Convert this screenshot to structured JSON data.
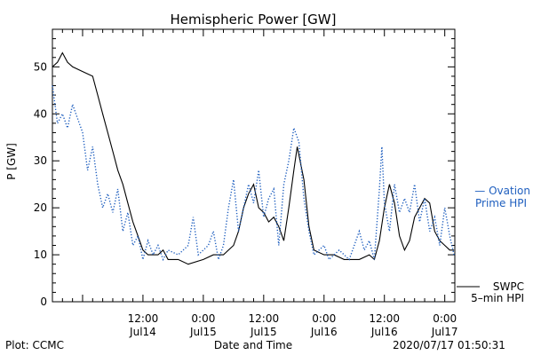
{
  "chart_data": {
    "type": "line",
    "title": "Hemispheric Power [GW]",
    "ylabel": "P [GW]",
    "xlabel": "Date and Time",
    "ylim": [
      0,
      58
    ],
    "xlim": [
      "2020-07-13 18:00",
      "2020-07-17 02:00"
    ],
    "yticks": [
      0,
      10,
      20,
      30,
      40,
      50
    ],
    "xticks": [
      {
        "t": "2020-07-14 12:00",
        "top": "12:00",
        "bottom": "Jul14"
      },
      {
        "t": "2020-07-15 00:00",
        "top": "0:00",
        "bottom": "Jul15"
      },
      {
        "t": "2020-07-15 12:00",
        "top": "12:00",
        "bottom": "Jul15"
      },
      {
        "t": "2020-07-16 00:00",
        "top": "0:00",
        "bottom": "Jul16"
      },
      {
        "t": "2020-07-16 12:00",
        "top": "12:00",
        "bottom": "Jul16"
      },
      {
        "t": "2020-07-17 00:00",
        "top": "0:00",
        "bottom": "Jul17"
      }
    ],
    "series": [
      {
        "name": "SWPC 5-min HPI",
        "color": "#000000",
        "style": "solid",
        "points": [
          [
            "2020-07-13 18:00",
            50
          ],
          [
            "2020-07-13 19:00",
            51
          ],
          [
            "2020-07-13 20:00",
            53
          ],
          [
            "2020-07-13 21:00",
            51
          ],
          [
            "2020-07-13 22:00",
            50
          ],
          [
            "2020-07-14 00:00",
            49
          ],
          [
            "2020-07-14 02:00",
            48
          ],
          [
            "2020-07-14 03:00",
            44
          ],
          [
            "2020-07-14 04:00",
            40
          ],
          [
            "2020-07-14 05:00",
            36
          ],
          [
            "2020-07-14 06:00",
            32
          ],
          [
            "2020-07-14 07:00",
            28
          ],
          [
            "2020-07-14 08:00",
            25
          ],
          [
            "2020-07-14 09:00",
            21
          ],
          [
            "2020-07-14 10:00",
            17
          ],
          [
            "2020-07-14 11:00",
            14
          ],
          [
            "2020-07-14 12:00",
            11
          ],
          [
            "2020-07-14 13:00",
            10
          ],
          [
            "2020-07-14 15:00",
            10
          ],
          [
            "2020-07-14 16:00",
            11
          ],
          [
            "2020-07-14 17:00",
            9
          ],
          [
            "2020-07-14 19:00",
            9
          ],
          [
            "2020-07-14 21:00",
            8
          ],
          [
            "2020-07-15 00:00",
            9
          ],
          [
            "2020-07-15 02:00",
            10
          ],
          [
            "2020-07-15 04:00",
            10
          ],
          [
            "2020-07-15 06:00",
            12
          ],
          [
            "2020-07-15 07:00",
            15
          ],
          [
            "2020-07-15 08:00",
            20
          ],
          [
            "2020-07-15 09:00",
            23
          ],
          [
            "2020-07-15 10:00",
            25
          ],
          [
            "2020-07-15 11:00",
            20
          ],
          [
            "2020-07-15 12:00",
            19
          ],
          [
            "2020-07-15 13:00",
            17
          ],
          [
            "2020-07-15 14:00",
            18
          ],
          [
            "2020-07-15 15:00",
            16
          ],
          [
            "2020-07-15 16:00",
            13
          ],
          [
            "2020-07-15 17:00",
            20
          ],
          [
            "2020-07-15 18:00",
            28
          ],
          [
            "2020-07-15 18:40",
            33
          ],
          [
            "2020-07-15 20:00",
            26
          ],
          [
            "2020-07-15 21:00",
            16
          ],
          [
            "2020-07-15 22:00",
            11
          ],
          [
            "2020-07-16 00:00",
            10
          ],
          [
            "2020-07-16 02:00",
            10
          ],
          [
            "2020-07-16 04:00",
            9
          ],
          [
            "2020-07-16 07:00",
            9
          ],
          [
            "2020-07-16 09:00",
            10
          ],
          [
            "2020-07-16 10:00",
            9
          ],
          [
            "2020-07-16 11:00",
            13
          ],
          [
            "2020-07-16 12:00",
            20
          ],
          [
            "2020-07-16 13:00",
            25
          ],
          [
            "2020-07-16 14:00",
            21
          ],
          [
            "2020-07-16 15:00",
            14
          ],
          [
            "2020-07-16 16:00",
            11
          ],
          [
            "2020-07-16 17:00",
            13
          ],
          [
            "2020-07-16 18:00",
            18
          ],
          [
            "2020-07-16 19:00",
            20
          ],
          [
            "2020-07-16 20:00",
            22
          ],
          [
            "2020-07-16 21:00",
            21
          ],
          [
            "2020-07-16 22:00",
            15
          ],
          [
            "2020-07-16 23:00",
            13
          ],
          [
            "2020-07-17 00:00",
            12
          ],
          [
            "2020-07-17 01:00",
            11
          ],
          [
            "2020-07-17 01:50",
            11
          ]
        ]
      },
      {
        "name": "Ovation Prime HPI",
        "color": "#1f5fbf",
        "style": "dotted",
        "points": [
          [
            "2020-07-13 18:00",
            46
          ],
          [
            "2020-07-13 19:00",
            38
          ],
          [
            "2020-07-13 20:00",
            40
          ],
          [
            "2020-07-13 21:00",
            37
          ],
          [
            "2020-07-13 22:00",
            42
          ],
          [
            "2020-07-14 00:00",
            36
          ],
          [
            "2020-07-14 01:00",
            28
          ],
          [
            "2020-07-14 02:00",
            33
          ],
          [
            "2020-07-14 03:00",
            25
          ],
          [
            "2020-07-14 04:00",
            20
          ],
          [
            "2020-07-14 05:00",
            23
          ],
          [
            "2020-07-14 06:00",
            19
          ],
          [
            "2020-07-14 07:00",
            24
          ],
          [
            "2020-07-14 08:00",
            15
          ],
          [
            "2020-07-14 09:00",
            19
          ],
          [
            "2020-07-14 10:00",
            12
          ],
          [
            "2020-07-14 11:00",
            14
          ],
          [
            "2020-07-14 12:00",
            9
          ],
          [
            "2020-07-14 13:00",
            13
          ],
          [
            "2020-07-14 14:00",
            10
          ],
          [
            "2020-07-14 15:00",
            12
          ],
          [
            "2020-07-14 16:00",
            9
          ],
          [
            "2020-07-14 17:00",
            11
          ],
          [
            "2020-07-14 19:00",
            10
          ],
          [
            "2020-07-14 21:00",
            12
          ],
          [
            "2020-07-14 22:00",
            18
          ],
          [
            "2020-07-14 23:00",
            10
          ],
          [
            "2020-07-15 01:00",
            12
          ],
          [
            "2020-07-15 02:00",
            15
          ],
          [
            "2020-07-15 03:00",
            9
          ],
          [
            "2020-07-15 04:00",
            12
          ],
          [
            "2020-07-15 05:00",
            20
          ],
          [
            "2020-07-15 06:00",
            26
          ],
          [
            "2020-07-15 07:00",
            15
          ],
          [
            "2020-07-15 08:00",
            20
          ],
          [
            "2020-07-15 09:00",
            25
          ],
          [
            "2020-07-15 10:00",
            21
          ],
          [
            "2020-07-15 11:00",
            28
          ],
          [
            "2020-07-15 12:00",
            18
          ],
          [
            "2020-07-15 13:00",
            22
          ],
          [
            "2020-07-15 14:00",
            24
          ],
          [
            "2020-07-15 15:00",
            12
          ],
          [
            "2020-07-15 16:00",
            25
          ],
          [
            "2020-07-15 17:00",
            30
          ],
          [
            "2020-07-15 18:00",
            37
          ],
          [
            "2020-07-15 19:00",
            34
          ],
          [
            "2020-07-15 20:00",
            22
          ],
          [
            "2020-07-15 21:00",
            15
          ],
          [
            "2020-07-15 22:00",
            10
          ],
          [
            "2020-07-16 00:00",
            12
          ],
          [
            "2020-07-16 01:00",
            9
          ],
          [
            "2020-07-16 03:00",
            11
          ],
          [
            "2020-07-16 05:00",
            9
          ],
          [
            "2020-07-16 06:00",
            12
          ],
          [
            "2020-07-16 07:00",
            15
          ],
          [
            "2020-07-16 08:00",
            11
          ],
          [
            "2020-07-16 09:00",
            13
          ],
          [
            "2020-07-16 10:00",
            9
          ],
          [
            "2020-07-16 11:00",
            24
          ],
          [
            "2020-07-16 11:30",
            33
          ],
          [
            "2020-07-16 12:00",
            21
          ],
          [
            "2020-07-16 13:00",
            15
          ],
          [
            "2020-07-16 14:00",
            25
          ],
          [
            "2020-07-16 15:00",
            19
          ],
          [
            "2020-07-16 16:00",
            22
          ],
          [
            "2020-07-16 17:00",
            19
          ],
          [
            "2020-07-16 18:00",
            25
          ],
          [
            "2020-07-16 19:00",
            17
          ],
          [
            "2020-07-16 20:00",
            22
          ],
          [
            "2020-07-16 21:00",
            15
          ],
          [
            "2020-07-16 22:00",
            18
          ],
          [
            "2020-07-16 23:00",
            12
          ],
          [
            "2020-07-17 00:00",
            20
          ],
          [
            "2020-07-17 01:00",
            14
          ],
          [
            "2020-07-17 01:50",
            10
          ]
        ]
      }
    ]
  },
  "legend": {
    "ovation_line1": "— Ovation",
    "ovation_line2": "Prime HPI",
    "swpc_line1": "SWPC",
    "swpc_line2": "5–min HPI"
  },
  "footer": {
    "plot_credit": "Plot: CCMC",
    "timestamp": "2020/07/17 01:50:31"
  }
}
